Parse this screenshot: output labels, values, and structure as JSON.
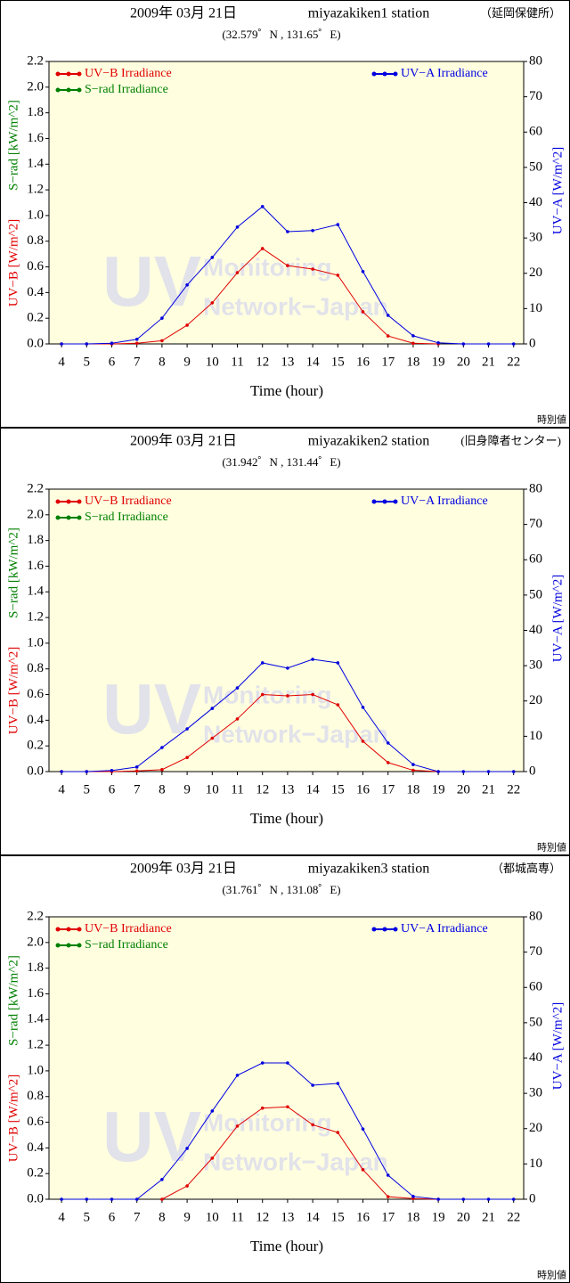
{
  "chart_data": [
    {
      "type": "line",
      "date": "2009年 03月 21日",
      "title": "miyazakiken1 station",
      "title_note": "（延岡保健所）",
      "subtitle": "(32.579゜N , 131.65゜E)",
      "xlabel": "Time (hour)",
      "ylabels": [
        {
          "text": "UV−B [W/m^2]",
          "color": "#e00000"
        },
        {
          "text": "S−rad [kW/m^2]",
          "color": "#008000"
        }
      ],
      "y2label": {
        "text": "UV−A [W/m^2]",
        "color": "#0000e0"
      },
      "note": "時別値",
      "watermark": [
        "UV",
        "Monitoring",
        "Network−Japan"
      ],
      "x": [
        4,
        5,
        6,
        7,
        8,
        9,
        10,
        11,
        12,
        13,
        14,
        15,
        16,
        17,
        18,
        19,
        20,
        21,
        22
      ],
      "xlim": [
        3.5,
        22.4
      ],
      "xticks": [
        4,
        5,
        6,
        7,
        8,
        9,
        10,
        11,
        12,
        13,
        14,
        15,
        16,
        17,
        18,
        19,
        20,
        21,
        22
      ],
      "ylim": [
        0,
        2.2
      ],
      "yticks": [
        {
          "value": 0,
          "label": "0.0"
        },
        {
          "value": 0.2,
          "label": "0.2"
        },
        {
          "value": 0.4,
          "label": "0.4"
        },
        {
          "value": 0.6,
          "label": "0.6"
        },
        {
          "value": 0.8,
          "label": "0.8"
        },
        {
          "value": 1,
          "label": "1.0"
        },
        {
          "value": 1.2,
          "label": "1.2"
        },
        {
          "value": 1.4,
          "label": "1.4"
        },
        {
          "value": 1.6,
          "label": "1.6"
        },
        {
          "value": 1.8,
          "label": "1.8"
        },
        {
          "value": 2,
          "label": "2.0"
        },
        {
          "value": 2.2,
          "label": "2.2"
        }
      ],
      "y2lim": [
        0,
        80
      ],
      "y2ticks": [
        0,
        10,
        20,
        30,
        40,
        50,
        60,
        70,
        80
      ],
      "series": [
        {
          "name": "UV−B Irradiance",
          "color": "#e00000",
          "values": [
            0,
            0,
            0,
            0.005,
            0.025,
            0.146,
            0.32,
            0.555,
            0.743,
            0.61,
            0.583,
            0.535,
            0.25,
            0.062,
            0.005,
            0,
            null,
            null,
            null
          ]
        },
        {
          "name": "S−rad Irradiance",
          "color": "#008000",
          "values": [
            null,
            null,
            null,
            null,
            null,
            null,
            null,
            null,
            null,
            null,
            null,
            null,
            null,
            null,
            null,
            null,
            null,
            null,
            null
          ]
        },
        {
          "name": "UV−A Irradiance",
          "color": "#0000e0",
          "axis": "y2",
          "values": [
            0,
            0,
            0.2,
            1.3,
            7.3,
            16.7,
            24.5,
            33.1,
            38.9,
            31.8,
            32.1,
            33.8,
            20.5,
            8.1,
            2.3,
            0.3,
            0,
            0,
            0
          ]
        }
      ]
    },
    {
      "type": "line",
      "date": "2009年 03月 21日",
      "title": "miyazakiken2 station",
      "title_note": "(旧身障者センター)",
      "subtitle": "(31.942゜N , 131.44゜E)",
      "xlabel": "Time (hour)",
      "ylabels": [
        {
          "text": "UV−B [W/m^2]",
          "color": "#e00000"
        },
        {
          "text": "S−rad [kW/m^2]",
          "color": "#008000"
        }
      ],
      "y2label": {
        "text": "UV−A [W/m^2]",
        "color": "#0000e0"
      },
      "note": "時別値",
      "watermark": [
        "UV",
        "Monitoring",
        "Network−Japan"
      ],
      "x": [
        4,
        5,
        6,
        7,
        8,
        9,
        10,
        11,
        12,
        13,
        14,
        15,
        16,
        17,
        18,
        19,
        20,
        21,
        22
      ],
      "xlim": [
        3.5,
        22.4
      ],
      "xticks": [
        4,
        5,
        6,
        7,
        8,
        9,
        10,
        11,
        12,
        13,
        14,
        15,
        16,
        17,
        18,
        19,
        20,
        21,
        22
      ],
      "ylim": [
        0,
        2.2
      ],
      "yticks": [
        {
          "value": 0,
          "label": "0.0"
        },
        {
          "value": 0.2,
          "label": "0.2"
        },
        {
          "value": 0.4,
          "label": "0.4"
        },
        {
          "value": 0.6,
          "label": "0.6"
        },
        {
          "value": 0.8,
          "label": "0.8"
        },
        {
          "value": 1,
          "label": "1.0"
        },
        {
          "value": 1.2,
          "label": "1.2"
        },
        {
          "value": 1.4,
          "label": "1.4"
        },
        {
          "value": 1.6,
          "label": "1.6"
        },
        {
          "value": 1.8,
          "label": "1.8"
        },
        {
          "value": 2,
          "label": "2.0"
        },
        {
          "value": 2.2,
          "label": "2.2"
        }
      ],
      "y2lim": [
        0,
        80
      ],
      "y2ticks": [
        0,
        10,
        20,
        30,
        40,
        50,
        60,
        70,
        80
      ],
      "series": [
        {
          "name": "UV−B Irradiance",
          "color": "#e00000",
          "values": [
            0,
            0,
            0,
            0.005,
            0.015,
            0.11,
            0.26,
            0.41,
            0.6,
            0.59,
            0.6,
            0.52,
            0.236,
            0.07,
            0.01,
            0,
            null,
            null,
            null
          ]
        },
        {
          "name": "S−rad Irradiance",
          "color": "#008000",
          "values": [
            null,
            null,
            null,
            null,
            null,
            null,
            null,
            null,
            null,
            null,
            null,
            null,
            null,
            null,
            null,
            null,
            null,
            null,
            null
          ]
        },
        {
          "name": "UV−A Irradiance",
          "color": "#0000e0",
          "axis": "y2",
          "values": [
            0,
            0,
            0.3,
            1.3,
            6.8,
            12.1,
            17.9,
            23.7,
            30.8,
            29.3,
            31.8,
            30.8,
            18.2,
            8.1,
            2,
            0,
            0,
            0,
            0
          ]
        }
      ]
    },
    {
      "type": "line",
      "date": "2009年 03月 21日",
      "title": "miyazakiken3 station",
      "title_note": "（都城高専）",
      "subtitle": "(31.761゜N , 131.08゜E)",
      "xlabel": "Time (hour)",
      "ylabels": [
        {
          "text": "UV−B [W/m^2]",
          "color": "#e00000"
        },
        {
          "text": "S−rad [kW/m^2]",
          "color": "#008000"
        }
      ],
      "y2label": {
        "text": "UV−A [W/m^2]",
        "color": "#0000e0"
      },
      "note": "時別値",
      "watermark": [
        "UV",
        "Monitoring",
        "Network−Japan"
      ],
      "x": [
        4,
        5,
        6,
        7,
        8,
        9,
        10,
        11,
        12,
        13,
        14,
        15,
        16,
        17,
        18,
        19,
        20,
        21,
        22
      ],
      "xlim": [
        3.5,
        22.4
      ],
      "xticks": [
        4,
        5,
        6,
        7,
        8,
        9,
        10,
        11,
        12,
        13,
        14,
        15,
        16,
        17,
        18,
        19,
        20,
        21,
        22
      ],
      "ylim": [
        0,
        2.2
      ],
      "yticks": [
        {
          "value": 0,
          "label": "0.0"
        },
        {
          "value": 0.2,
          "label": "0.2"
        },
        {
          "value": 0.4,
          "label": "0.4"
        },
        {
          "value": 0.6,
          "label": "0.6"
        },
        {
          "value": 0.8,
          "label": "0.8"
        },
        {
          "value": 1,
          "label": "1.0"
        },
        {
          "value": 1.2,
          "label": "1.2"
        },
        {
          "value": 1.4,
          "label": "1.4"
        },
        {
          "value": 1.6,
          "label": "1.6"
        },
        {
          "value": 1.8,
          "label": "1.8"
        },
        {
          "value": 2,
          "label": "2.0"
        },
        {
          "value": 2.2,
          "label": "2.2"
        }
      ],
      "y2lim": [
        0,
        80
      ],
      "y2ticks": [
        0,
        10,
        20,
        30,
        40,
        50,
        60,
        70,
        80
      ],
      "series": [
        {
          "name": "UV−B Irradiance",
          "color": "#e00000",
          "values": [
            null,
            null,
            null,
            null,
            0,
            0.104,
            0.32,
            0.57,
            0.71,
            0.72,
            0.58,
            0.52,
            0.23,
            0.02,
            0.005,
            0,
            null,
            null,
            null
          ]
        },
        {
          "name": "S−rad Irradiance",
          "color": "#008000",
          "values": [
            null,
            null,
            null,
            null,
            null,
            null,
            null,
            null,
            null,
            null,
            null,
            null,
            null,
            null,
            null,
            null,
            null,
            null,
            null
          ]
        },
        {
          "name": "UV−A Irradiance",
          "color": "#0000e0",
          "axis": "y2",
          "values": [
            0,
            0,
            0,
            0,
            5.6,
            14.4,
            25,
            35.1,
            38.6,
            38.6,
            32.3,
            32.8,
            19.9,
            6.8,
            0.8,
            0,
            0,
            0,
            0
          ]
        }
      ]
    }
  ]
}
